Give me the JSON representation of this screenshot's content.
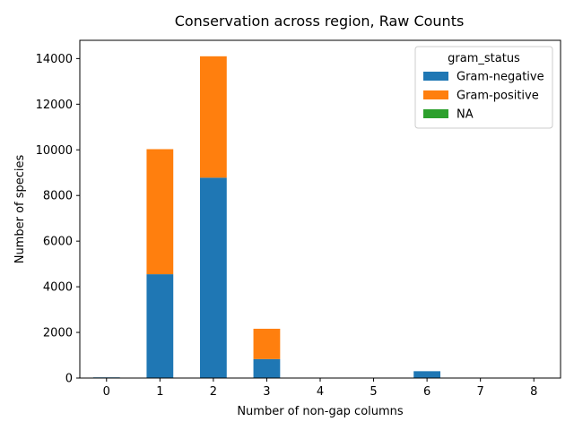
{
  "chart_data": {
    "type": "bar",
    "stacked": true,
    "title": "Conservation across region, Raw Counts",
    "xlabel": "Number of non-gap columns",
    "ylabel": "Number of species",
    "categories": [
      "0",
      "1",
      "2",
      "3",
      "4",
      "5",
      "6",
      "7",
      "8"
    ],
    "ylim": [
      0,
      14800
    ],
    "yticks": [
      0,
      2000,
      4000,
      6000,
      8000,
      10000,
      12000,
      14000
    ],
    "legend_title": "gram_status",
    "legend_position": "top-right",
    "grid": false,
    "series": [
      {
        "name": "Gram-negative",
        "color": "#1f77b4",
        "values": [
          30,
          4550,
          8780,
          830,
          0,
          0,
          300,
          0,
          0
        ]
      },
      {
        "name": "Gram-positive",
        "color": "#ff7f0e",
        "values": [
          0,
          5480,
          5320,
          1330,
          0,
          0,
          0,
          0,
          0
        ]
      },
      {
        "name": "NA",
        "color": "#2ca02c",
        "values": [
          0,
          0,
          0,
          0,
          0,
          0,
          0,
          0,
          0
        ]
      }
    ]
  }
}
